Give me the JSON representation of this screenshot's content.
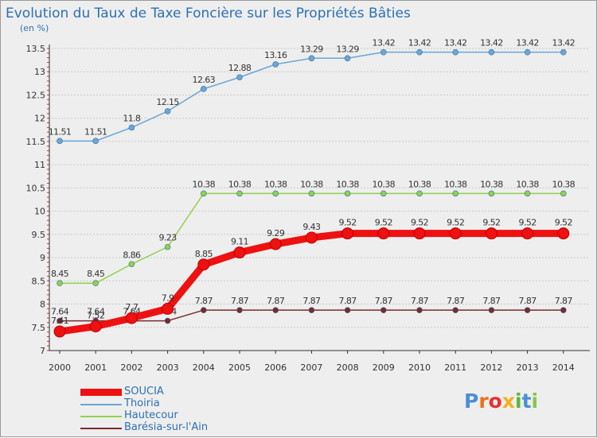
{
  "page": {
    "title": "Evolution du Taux de Taxe Foncière sur les Propriétés Bâties",
    "unit": "(en %)",
    "logo_text": "Proxiti"
  },
  "colors": {
    "background": "#eeeeee",
    "title": "#2d6fb2",
    "grid": "#c8c8c8",
    "axis": "#333333",
    "logo": [
      "#4a8fd6",
      "#e8731a",
      "#e83030",
      "#f2b01e",
      "#58b838",
      "#4a8fd6",
      "#8bc34a"
    ]
  },
  "chart_data": {
    "type": "line",
    "title": "Evolution du Taux de Taxe Foncière sur les Propriétés Bâties",
    "ylabel": "(en %)",
    "xlabel": "",
    "ylim": [
      7,
      13.5
    ],
    "yticks": [
      "7",
      "7.5",
      "8",
      "8.5",
      "9",
      "9.5",
      "10",
      "10.5",
      "11",
      "11.5",
      "12",
      "12.5",
      "13",
      "13.5"
    ],
    "x": [
      "2000",
      "2001",
      "2002",
      "2003",
      "2004",
      "2005",
      "2006",
      "2007",
      "2008",
      "2009",
      "2010",
      "2011",
      "2012",
      "2013",
      "2014"
    ],
    "grid": "horizontal",
    "legend_position": "bottom-left",
    "series": [
      {
        "name": "SOUCIA",
        "color": "#ee1111",
        "values": [
          7.41,
          7.52,
          7.7,
          7.9,
          8.85,
          9.11,
          9.29,
          9.43,
          9.52,
          9.52,
          9.52,
          9.52,
          9.52,
          9.52,
          9.52
        ],
        "labels": [
          "7.41",
          "7.52",
          "7.7",
          "7.9",
          "8.85",
          "9.11",
          "9.29",
          "9.43",
          "9.52",
          "9.52",
          "9.52",
          "9.52",
          "9.52",
          "9.52",
          "9.52"
        ]
      },
      {
        "name": "Thoiria",
        "color": "#6ba6d6",
        "values": [
          11.51,
          11.51,
          11.8,
          12.15,
          12.63,
          12.88,
          13.16,
          13.29,
          13.29,
          13.42,
          13.42,
          13.42,
          13.42,
          13.42,
          13.42
        ],
        "labels": [
          "11.51",
          "11.51",
          "11.8",
          "12.15",
          "12.63",
          "12.88",
          "13.16",
          "13.29",
          "13.29",
          "13.42",
          "13.42",
          "13.42",
          "13.42",
          "13.42",
          "13.42"
        ]
      },
      {
        "name": "Hautecour",
        "color": "#8fd14f",
        "values": [
          8.45,
          8.45,
          8.86,
          9.23,
          10.38,
          10.38,
          10.38,
          10.38,
          10.38,
          10.38,
          10.38,
          10.38,
          10.38,
          10.38,
          10.38
        ],
        "labels": [
          "8.45",
          "8.45",
          "8.86",
          "9.23",
          "10.38",
          "10.38",
          "10.38",
          "10.38",
          "10.38",
          "10.38",
          "10.38",
          "10.38",
          "10.38",
          "10.38",
          "10.38"
        ]
      },
      {
        "name": "Barésia-sur-l'Ain",
        "color": "#7a2a2a",
        "values": [
          7.64,
          7.64,
          7.64,
          7.64,
          7.87,
          7.87,
          7.87,
          7.87,
          7.87,
          7.87,
          7.87,
          7.87,
          7.87,
          7.87,
          7.87
        ],
        "labels": [
          "7.64",
          "7.64",
          "7.64",
          "7.64",
          "7.87",
          "7.87",
          "7.87",
          "7.87",
          "7.87",
          "7.87",
          "7.87",
          "7.87",
          "7.87",
          "7.87",
          "7.87"
        ]
      }
    ]
  }
}
